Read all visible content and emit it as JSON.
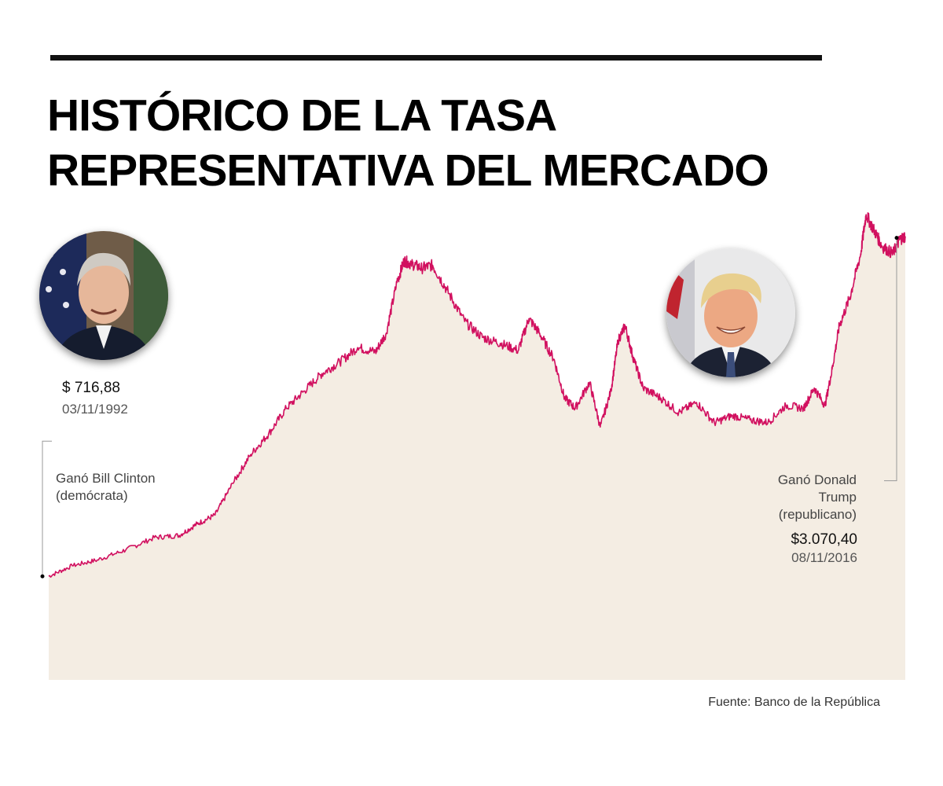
{
  "title": {
    "line1": "HISTÓRICO DE LA TASA",
    "line2": "REPRESENTATIVA DEL MERCADO"
  },
  "annotations": {
    "start_value": "$ 716,88",
    "start_date": "03/11/1992",
    "start_event_line1": "Ganó Bill Clinton",
    "start_event_line2": "(demócrata)",
    "end_event_line1": "Ganó Donald",
    "end_event_line2": "Trump",
    "end_event_line3": "(republicano)",
    "end_value": "$3.070,40",
    "end_date": "08/11/2016"
  },
  "source": "Fuente: Banco de la República",
  "colors": {
    "line": "#d1105f",
    "area": "#f4ede3",
    "title": "#000000"
  },
  "chart_data": {
    "type": "area",
    "title": "HISTÓRICO DE LA TASA REPRESENTATIVA DEL MERCADO",
    "xlabel": "",
    "ylabel": "",
    "units": "COP per USD",
    "grid": false,
    "legend": "none",
    "xlim": [
      1992.84,
      2016.85
    ],
    "ylim": [
      0,
      3400
    ],
    "series": [
      {
        "x": [
          1992.84,
          1993.5,
          1994.2,
          1995.0,
          1995.8,
          1996.5,
          1997.0,
          1997.5,
          1998.0,
          1998.5,
          1999.0,
          1999.5,
          2000.0,
          2000.5,
          2001.0,
          2001.5,
          2002.0,
          2002.3,
          2002.6,
          2002.8,
          2003.0,
          2003.3,
          2003.6,
          2004.0,
          2004.5,
          2005.0,
          2005.5,
          2006.0,
          2006.3,
          2006.6,
          2007.0,
          2007.3,
          2007.6,
          2008.0,
          2008.3,
          2008.6,
          2008.8,
          2009.0,
          2009.2,
          2009.5,
          2010.0,
          2010.5,
          2011.0,
          2011.5,
          2012.0,
          2012.5,
          2013.0,
          2013.5,
          2014.0,
          2014.3,
          2014.6,
          2014.8,
          2015.0,
          2015.3,
          2015.6,
          2015.75,
          2016.0,
          2016.2,
          2016.5,
          2016.7,
          2016.85
        ],
        "values": [
          716.88,
          790,
          830,
          900,
          985,
          1000,
          1080,
          1140,
          1360,
          1560,
          1700,
          1880,
          2000,
          2120,
          2200,
          2300,
          2270,
          2400,
          2750,
          2900,
          2880,
          2850,
          2870,
          2700,
          2480,
          2370,
          2330,
          2280,
          2500,
          2400,
          2220,
          1950,
          1880,
          2060,
          1750,
          2000,
          2350,
          2450,
          2250,
          2020,
          1950,
          1850,
          1920,
          1780,
          1830,
          1800,
          1780,
          1900,
          1880,
          2020,
          1900,
          2150,
          2450,
          2650,
          2950,
          3220,
          3100,
          3000,
          2950,
          3050,
          3070.4
        ]
      }
    ]
  }
}
